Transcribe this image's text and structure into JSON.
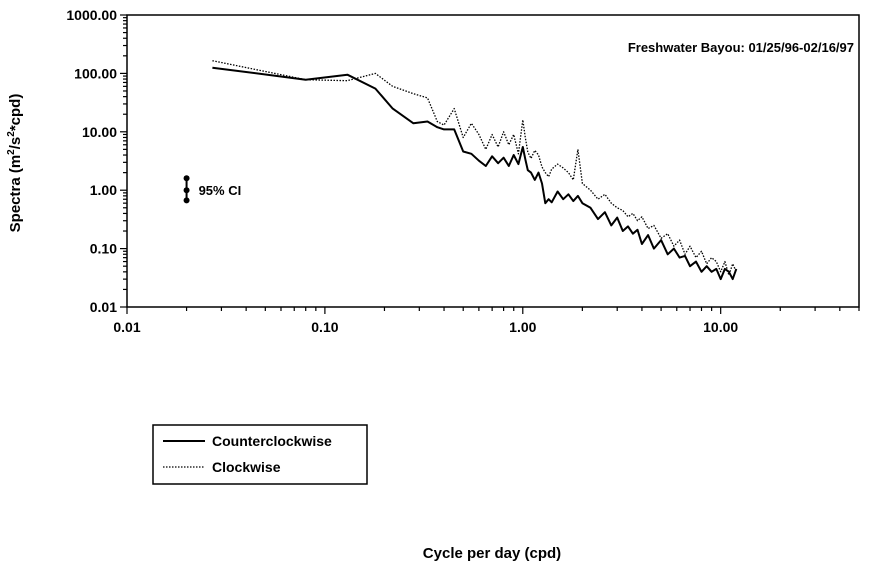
{
  "chart_data": {
    "type": "line",
    "title": "Freshwater Bayou: 01/25/96-02/16/97",
    "xlabel": "Cycle per day (cpd)",
    "ylabel": "Spectra (m²/s²*cpd)",
    "ylabel_parts": {
      "pre": "Spectra (m",
      "sup1": "2",
      "mid": "/s",
      "sup2": "2",
      "post": "*cpd)"
    },
    "xscale": "log",
    "yscale": "log",
    "xlim": [
      0.01,
      50
    ],
    "ylim": [
      0.01,
      1000
    ],
    "grid": false,
    "legend_position": "bottom-left",
    "x_ticks": [
      {
        "value": 0.01,
        "label": "0.01"
      },
      {
        "value": 0.1,
        "label": "0.10"
      },
      {
        "value": 1,
        "label": "1.00"
      },
      {
        "value": 10,
        "label": "10.00"
      }
    ],
    "y_ticks": [
      {
        "value": 0.01,
        "label": "0.01"
      },
      {
        "value": 0.1,
        "label": "0.10"
      },
      {
        "value": 1,
        "label": "1.00"
      },
      {
        "value": 10,
        "label": "10.00"
      },
      {
        "value": 100,
        "label": "100.00"
      },
      {
        "value": 1000,
        "label": "1000.00"
      }
    ],
    "confidence_interval": {
      "label": "95% CI",
      "x": 0.02,
      "center": 1.0,
      "lower": 0.67,
      "upper": 1.6
    },
    "series": [
      {
        "name": "Counterclockwise",
        "style": "solid",
        "color": "#000000",
        "x": [
          0.027,
          0.08,
          0.13,
          0.18,
          0.22,
          0.28,
          0.33,
          0.37,
          0.4,
          0.45,
          0.5,
          0.55,
          0.6,
          0.65,
          0.7,
          0.75,
          0.8,
          0.85,
          0.9,
          0.95,
          1.0,
          1.03,
          1.06,
          1.1,
          1.15,
          1.2,
          1.25,
          1.3,
          1.35,
          1.4,
          1.5,
          1.6,
          1.7,
          1.8,
          1.9,
          2.0,
          2.2,
          2.4,
          2.6,
          2.8,
          3.0,
          3.2,
          3.4,
          3.6,
          3.8,
          4.0,
          4.3,
          4.6,
          5.0,
          5.4,
          5.8,
          6.2,
          6.6,
          7.0,
          7.5,
          8.0,
          8.5,
          9.0,
          9.5,
          10.0,
          10.5,
          11.0,
          11.5,
          12.0
        ],
        "y": [
          125,
          78,
          95,
          55,
          25,
          14,
          15,
          12,
          11,
          11,
          4.6,
          4.2,
          3.2,
          2.6,
          3.8,
          2.9,
          3.6,
          2.6,
          4.0,
          2.8,
          5.5,
          3.4,
          2.2,
          2.0,
          1.5,
          2.0,
          1.3,
          0.6,
          0.7,
          0.62,
          0.95,
          0.7,
          0.85,
          0.65,
          0.8,
          0.6,
          0.5,
          0.32,
          0.42,
          0.25,
          0.34,
          0.2,
          0.24,
          0.18,
          0.21,
          0.12,
          0.17,
          0.1,
          0.14,
          0.08,
          0.1,
          0.07,
          0.075,
          0.05,
          0.06,
          0.04,
          0.05,
          0.04,
          0.045,
          0.03,
          0.045,
          0.04,
          0.03,
          0.045
        ]
      },
      {
        "name": "Clockwise",
        "style": "dotted",
        "color": "#000000",
        "x": [
          0.027,
          0.08,
          0.13,
          0.18,
          0.22,
          0.28,
          0.33,
          0.37,
          0.4,
          0.45,
          0.5,
          0.55,
          0.6,
          0.65,
          0.7,
          0.75,
          0.8,
          0.85,
          0.9,
          0.95,
          1.0,
          1.03,
          1.06,
          1.1,
          1.15,
          1.2,
          1.25,
          1.3,
          1.35,
          1.4,
          1.5,
          1.6,
          1.7,
          1.8,
          1.9,
          2.0,
          2.2,
          2.4,
          2.6,
          2.8,
          3.0,
          3.2,
          3.4,
          3.6,
          3.8,
          4.0,
          4.3,
          4.6,
          5.0,
          5.4,
          5.8,
          6.2,
          6.6,
          7.0,
          7.5,
          8.0,
          8.5,
          9.0,
          9.5,
          10.0,
          10.5,
          11.0,
          11.5,
          12.0
        ],
        "y": [
          165,
          78,
          75,
          100,
          60,
          45,
          38,
          15,
          13,
          25,
          8,
          14,
          9,
          5,
          9,
          5.5,
          10,
          6,
          9,
          4.2,
          16,
          8,
          4.5,
          3.5,
          4.8,
          4.0,
          2.5,
          2.0,
          1.7,
          2.3,
          2.8,
          2.4,
          2.0,
          1.5,
          5.0,
          1.3,
          1.0,
          0.7,
          0.85,
          0.6,
          0.5,
          0.45,
          0.35,
          0.4,
          0.3,
          0.35,
          0.22,
          0.25,
          0.15,
          0.18,
          0.11,
          0.14,
          0.08,
          0.11,
          0.07,
          0.09,
          0.055,
          0.07,
          0.06,
          0.04,
          0.06,
          0.035,
          0.055,
          0.04
        ]
      }
    ]
  }
}
